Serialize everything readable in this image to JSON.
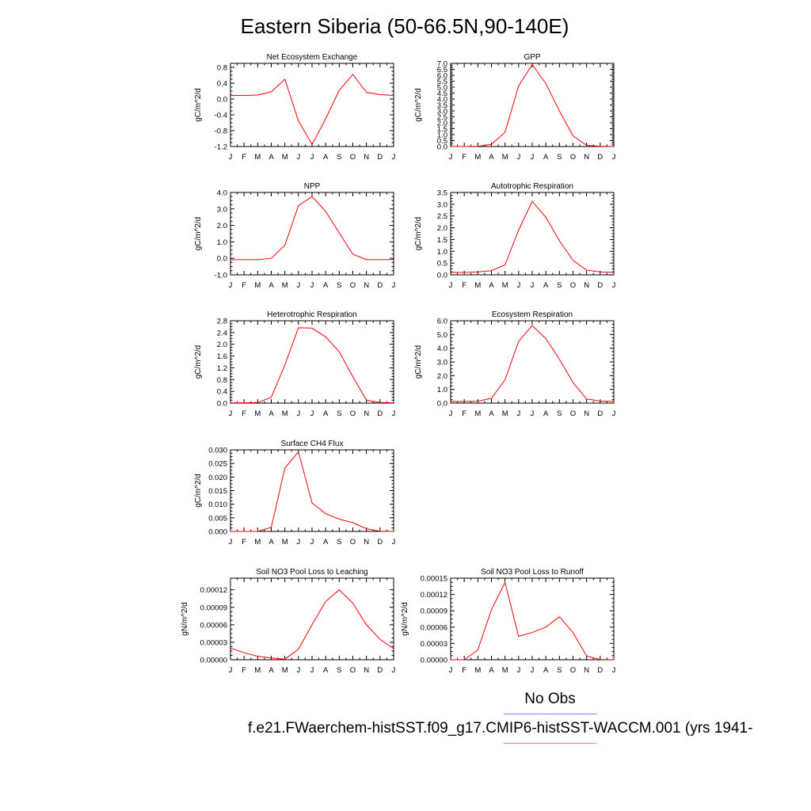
{
  "title": "Eastern Siberia (50-66.5N,90-140E)",
  "legend": {
    "obs_label": "No Obs",
    "case_label": "f.e21.FWaerchem-histSST.f09_g17.CMIP6-histSST-WACCM.001 (yrs 1941-",
    "colors": {
      "obs": "#8080ee",
      "case": "#ff0000"
    }
  },
  "chart_data": [
    {
      "type": "line",
      "title": "Net Ecosystem Exchange",
      "ylabel": "gC/m^2/d",
      "categories": [
        "J",
        "F",
        "M",
        "A",
        "M",
        "J",
        "J",
        "A",
        "S",
        "O",
        "N",
        "D",
        "J"
      ],
      "ylim": [
        -1.2,
        0.9
      ],
      "yticks": [
        "-1.2",
        "-0.8",
        "-0.4",
        "0.0",
        "0.4",
        "0.8"
      ],
      "series": [
        {
          "values": [
            0.09,
            0.09,
            0.1,
            0.18,
            0.5,
            -0.55,
            -1.15,
            -0.5,
            0.22,
            0.62,
            0.17,
            0.11,
            0.09
          ]
        }
      ]
    },
    {
      "type": "line",
      "title": "GPP",
      "ylabel": "gC/m^2/d",
      "categories": [
        "J",
        "F",
        "M",
        "A",
        "M",
        "J",
        "J",
        "A",
        "S",
        "O",
        "N",
        "D",
        "J"
      ],
      "ylim": [
        0.0,
        7.0
      ],
      "yticks": [
        "0.0",
        "0.5",
        "1.0",
        "1.5",
        "2.0",
        "2.5",
        "3.0",
        "3.5",
        "4.0",
        "4.5",
        "5.0",
        "5.5",
        "6.0",
        "6.5",
        "7.0"
      ],
      "series": [
        {
          "values": [
            0.0,
            0.0,
            0.02,
            0.18,
            1.2,
            5.1,
            6.9,
            5.3,
            3.0,
            0.9,
            0.1,
            0.02,
            0.0
          ]
        }
      ]
    },
    {
      "type": "line",
      "title": "NPP",
      "ylabel": "gC/m^2/d",
      "categories": [
        "J",
        "F",
        "M",
        "A",
        "M",
        "J",
        "J",
        "A",
        "S",
        "O",
        "N",
        "D",
        "J"
      ],
      "ylim": [
        -1.0,
        4.0
      ],
      "yticks": [
        "-1.0",
        "0.0",
        "1.0",
        "2.0",
        "3.0",
        "4.0"
      ],
      "series": [
        {
          "values": [
            -0.08,
            -0.08,
            -0.08,
            0.0,
            0.8,
            3.2,
            3.75,
            2.85,
            1.55,
            0.25,
            -0.08,
            -0.08,
            -0.07
          ]
        }
      ]
    },
    {
      "type": "line",
      "title": "Autotrophic Respiration",
      "ylabel": "gC/m^2/d",
      "categories": [
        "J",
        "F",
        "M",
        "A",
        "M",
        "J",
        "J",
        "A",
        "S",
        "O",
        "N",
        "D",
        "J"
      ],
      "ylim": [
        0.0,
        3.5
      ],
      "yticks": [
        "0.0",
        "0.5",
        "1.0",
        "1.5",
        "2.0",
        "2.5",
        "3.0",
        "3.5"
      ],
      "series": [
        {
          "values": [
            0.1,
            0.1,
            0.12,
            0.18,
            0.42,
            1.9,
            3.12,
            2.45,
            1.45,
            0.62,
            0.2,
            0.12,
            0.1
          ]
        }
      ]
    },
    {
      "type": "line",
      "title": "Heterotrophic Respiration",
      "ylabel": "gC/m^2/d",
      "categories": [
        "J",
        "F",
        "M",
        "A",
        "M",
        "J",
        "J",
        "A",
        "S",
        "O",
        "N",
        "D",
        "J"
      ],
      "ylim": [
        0.0,
        2.8
      ],
      "yticks": [
        "0.0",
        "0.4",
        "0.8",
        "1.2",
        "1.6",
        "2.0",
        "2.4",
        "2.8"
      ],
      "series": [
        {
          "values": [
            0.01,
            0.01,
            0.02,
            0.2,
            1.3,
            2.56,
            2.55,
            2.25,
            1.75,
            0.9,
            0.1,
            0.02,
            0.01
          ]
        }
      ]
    },
    {
      "type": "line",
      "title": "Ecosystem Respiration",
      "ylabel": "gC/m^2/d",
      "categories": [
        "J",
        "F",
        "M",
        "A",
        "M",
        "J",
        "J",
        "A",
        "S",
        "O",
        "N",
        "D",
        "J"
      ],
      "ylim": [
        0.0,
        6.0
      ],
      "yticks": [
        "0.0",
        "1.0",
        "2.0",
        "3.0",
        "4.0",
        "5.0",
        "6.0"
      ],
      "series": [
        {
          "values": [
            0.12,
            0.12,
            0.14,
            0.35,
            1.7,
            4.5,
            5.65,
            4.7,
            3.2,
            1.5,
            0.3,
            0.15,
            0.12
          ]
        }
      ]
    },
    {
      "type": "line",
      "title": "Surface CH4 Flux",
      "ylabel": "gC/m^2/d",
      "categories": [
        "J",
        "F",
        "M",
        "A",
        "M",
        "J",
        "J",
        "A",
        "S",
        "O",
        "N",
        "D",
        "J"
      ],
      "ylim": [
        0.0,
        0.03
      ],
      "yticks": [
        "0.000",
        "0.005",
        "0.010",
        "0.015",
        "0.020",
        "0.025",
        "0.030"
      ],
      "series": [
        {
          "values": [
            0.0,
            0.0,
            0.0,
            0.0015,
            0.0233,
            0.0293,
            0.0105,
            0.0065,
            0.0045,
            0.0032,
            0.001,
            0.0001,
            0.0
          ]
        }
      ]
    },
    {
      "type": "line",
      "title": "Soil NO3 Pool Loss to Leaching",
      "ylabel": "gN/m^2/d",
      "categories": [
        "J",
        "F",
        "M",
        "A",
        "M",
        "J",
        "J",
        "A",
        "S",
        "O",
        "N",
        "D",
        "J"
      ],
      "ylim": [
        0.0,
        0.00014
      ],
      "yticks": [
        "0.00000",
        "0.00003",
        "0.00006",
        "0.00009",
        "0.00012"
      ],
      "series": [
        {
          "values": [
            2e-05,
            1.2e-05,
            6e-06,
            3e-06,
            1e-06,
            1.8e-05,
            6e-05,
            0.0001,
            0.00012,
            9.7e-05,
            6e-05,
            3.5e-05,
            1.9e-05
          ]
        }
      ]
    },
    {
      "type": "line",
      "title": "Soil NO3 Pool Loss to Runoff",
      "ylabel": "gN/m^2/d",
      "categories": [
        "J",
        "F",
        "M",
        "A",
        "M",
        "J",
        "J",
        "A",
        "S",
        "O",
        "N",
        "D",
        "J"
      ],
      "ylim": [
        0.0,
        0.00015
      ],
      "yticks": [
        "0.00000",
        "0.00003",
        "0.00006",
        "0.00009",
        "0.00012",
        "0.00015"
      ],
      "series": [
        {
          "values": [
            0.0,
            0.0,
            1.8e-05,
            9.2e-05,
            0.000142,
            4.3e-05,
            5e-05,
            6e-05,
            7.9e-05,
            5e-05,
            7e-06,
            5e-07,
            0.0
          ]
        }
      ]
    }
  ]
}
